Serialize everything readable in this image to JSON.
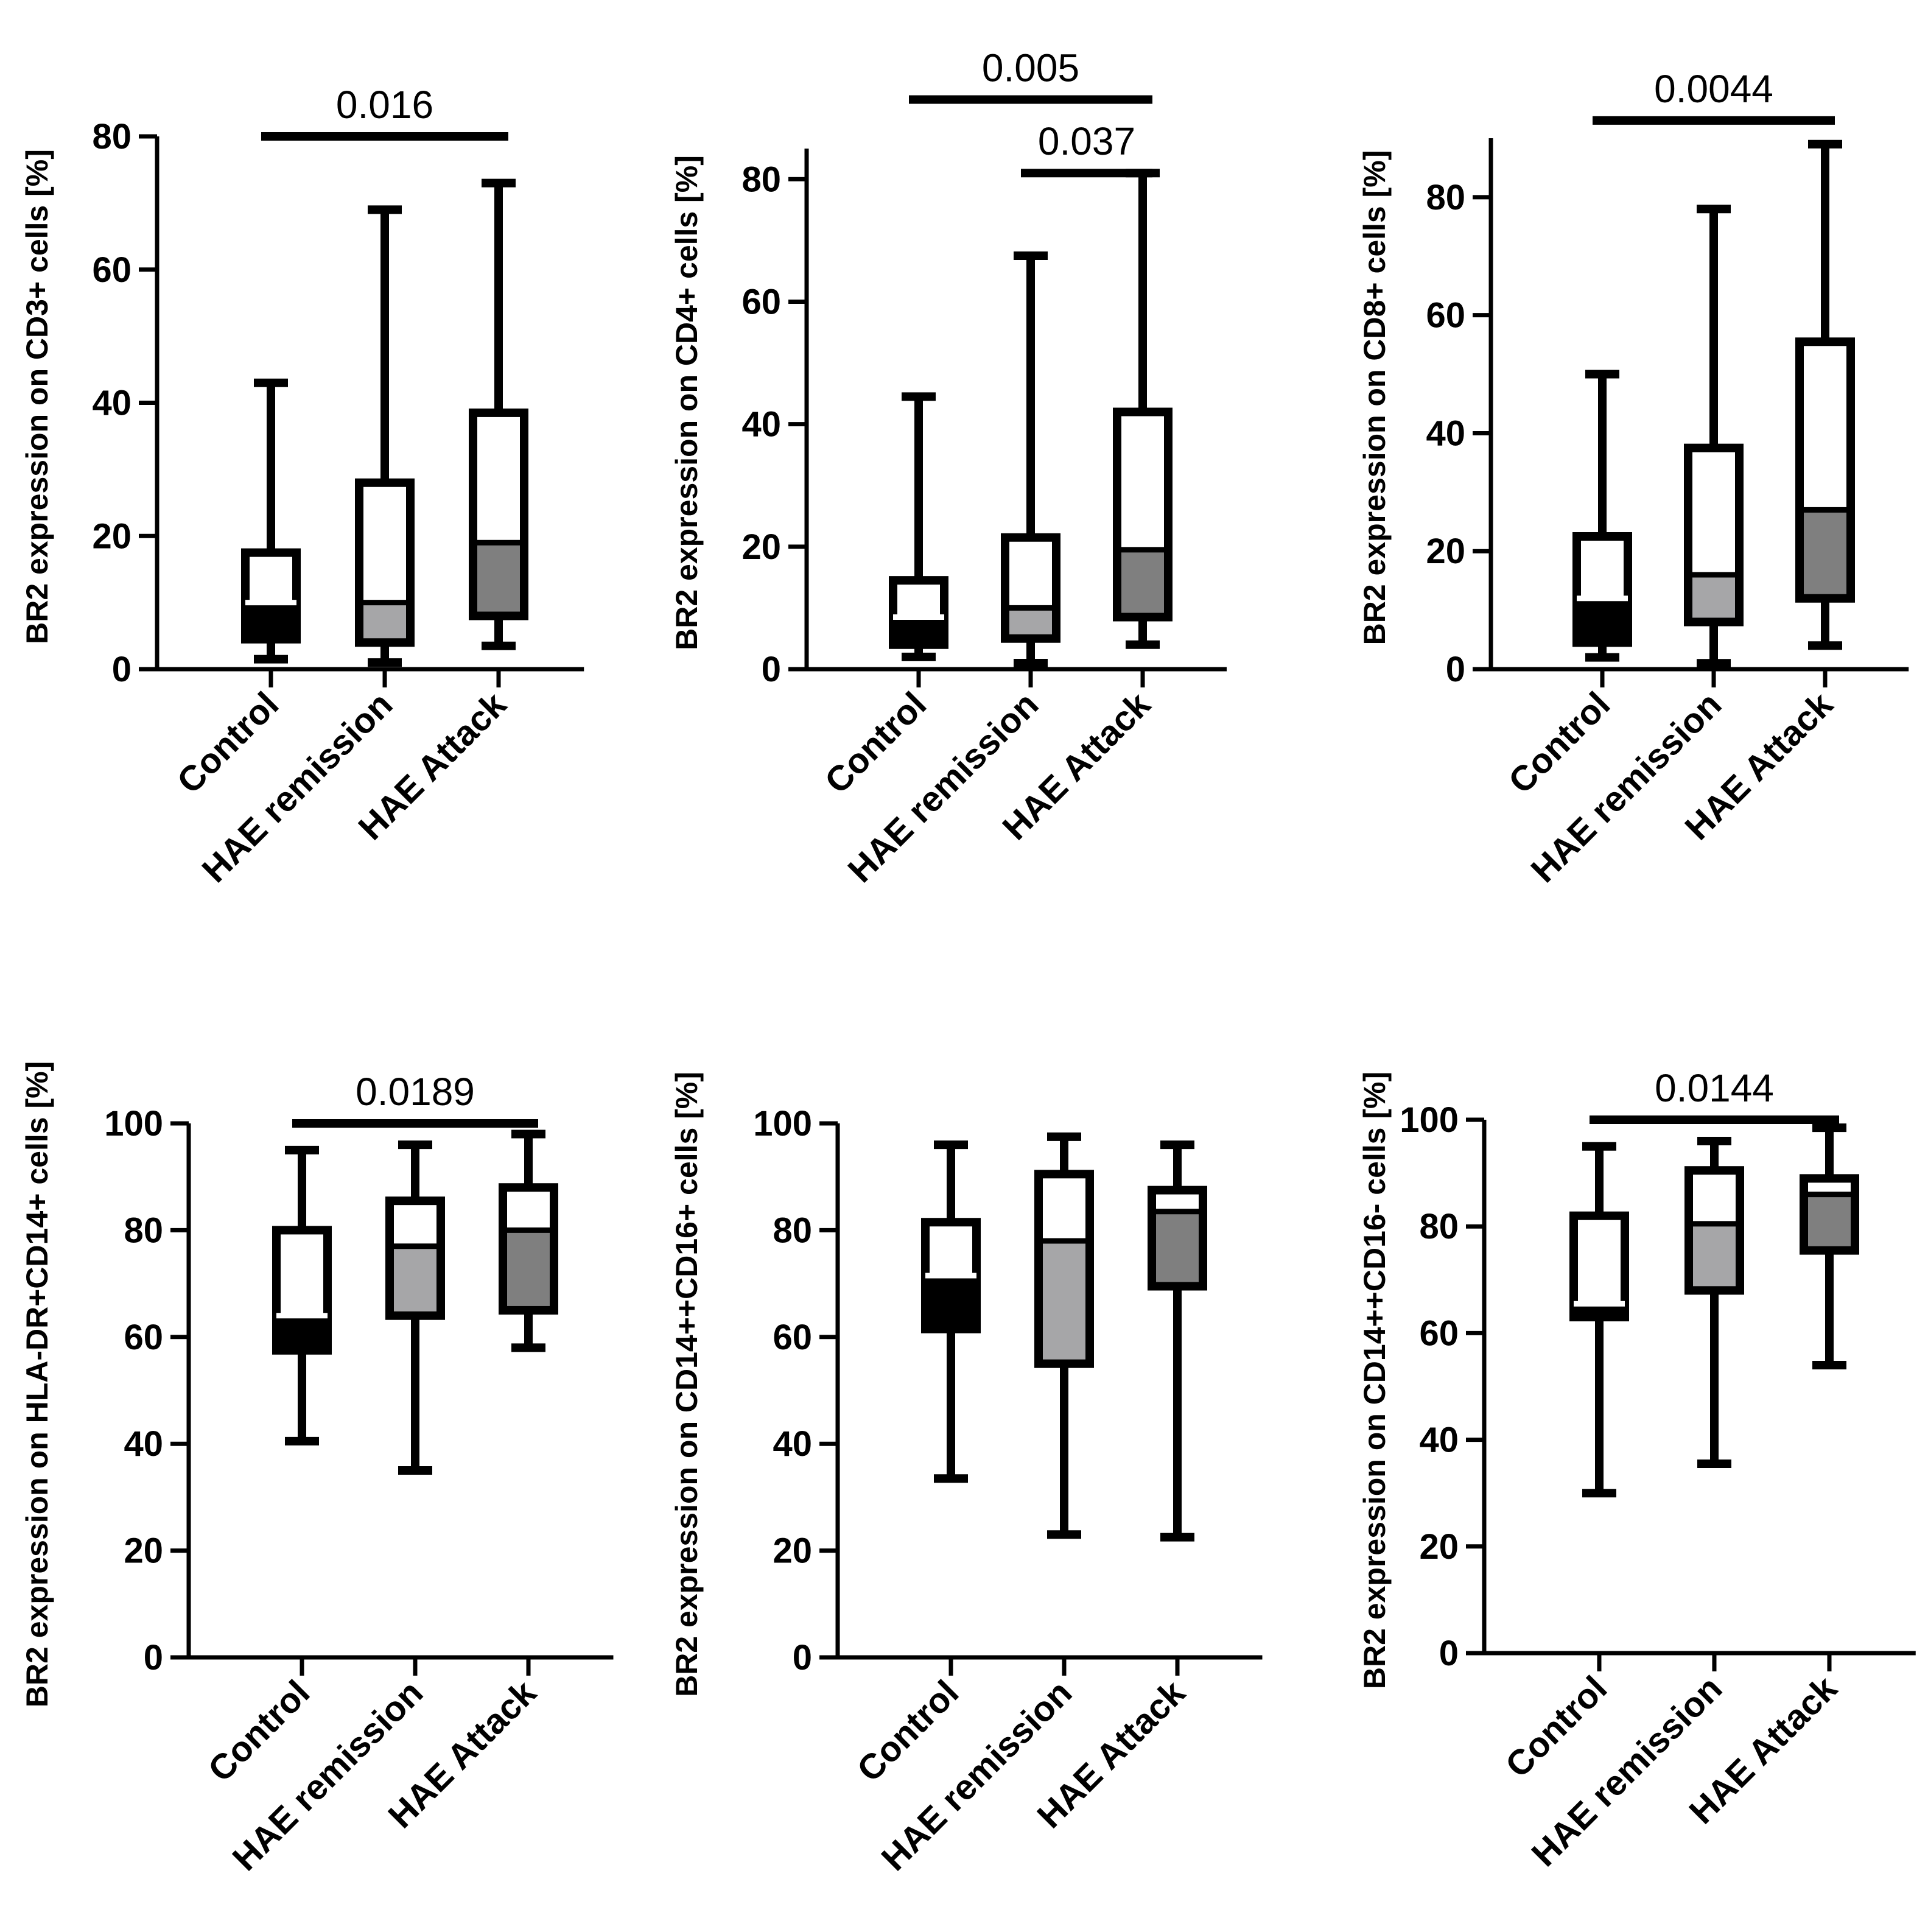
{
  "colors": {
    "ink": "#000000",
    "background": "#ffffff",
    "q1_fill_light": "#a6a6a8",
    "q1_fill_dark": "#7f7f7f"
  },
  "chart_data": [
    {
      "type": "box",
      "ylabel": "BR2 expression on CD3+ cells [%]",
      "categories": [
        "Control",
        "HAE remission",
        "HAE Attack"
      ],
      "ylim": [
        0,
        80
      ],
      "yticks": [
        0,
        20,
        40,
        60,
        80
      ],
      "boxes": [
        {
          "min": 1.5,
          "q1": 4.5,
          "median": 10,
          "q3": 17.5,
          "max": 43,
          "fill": "black"
        },
        {
          "min": 1,
          "q1": 4,
          "median": 10,
          "q3": 28,
          "max": 69,
          "fill": "light"
        },
        {
          "min": 3.5,
          "q1": 8,
          "median": 19,
          "q3": 38.5,
          "max": 73,
          "fill": "dark"
        }
      ],
      "comparisons": [
        {
          "from": 0,
          "to": 2,
          "label": "0.016",
          "y": 80
        }
      ]
    },
    {
      "type": "box",
      "ylabel": "BR2 expression on CD4+ cells [%]",
      "categories": [
        "Control",
        "HAE remission",
        "HAE Attack"
      ],
      "ylim": [
        0,
        85
      ],
      "yticks": [
        0,
        20,
        40,
        60,
        80
      ],
      "boxes": [
        {
          "min": 2,
          "q1": 4,
          "median": 8.5,
          "q3": 14.5,
          "max": 44.5,
          "fill": "black"
        },
        {
          "min": 1,
          "q1": 5,
          "median": 10,
          "q3": 21.5,
          "max": 67.5,
          "fill": "light"
        },
        {
          "min": 4,
          "q1": 8.5,
          "median": 19.5,
          "q3": 42,
          "max": 81,
          "fill": "dark"
        }
      ],
      "comparisons": [
        {
          "from": 0,
          "to": 2,
          "label": "0.005",
          "y": 93
        },
        {
          "from": 1,
          "to": 2,
          "label": "0.037",
          "y": 81
        }
      ]
    },
    {
      "type": "box",
      "ylabel": "BR2 expression on CD8+ cells [%]",
      "categories": [
        "Control",
        "HAE remission",
        "HAE Attack"
      ],
      "ylim": [
        0,
        90
      ],
      "yticks": [
        0,
        20,
        40,
        60,
        80
      ],
      "boxes": [
        {
          "min": 2,
          "q1": 4.5,
          "median": 12,
          "q3": 22.5,
          "max": 50,
          "fill": "black"
        },
        {
          "min": 1,
          "q1": 8,
          "median": 16,
          "q3": 37.5,
          "max": 78,
          "fill": "light"
        },
        {
          "min": 4,
          "q1": 12,
          "median": 27,
          "q3": 55.5,
          "max": 89,
          "fill": "dark"
        }
      ],
      "comparisons": [
        {
          "from": 0,
          "to": 2,
          "label": "0.0044",
          "y": 93
        }
      ]
    },
    {
      "type": "box",
      "ylabel": "BR2 expression on HLA-DR+CD14+ cells [%]",
      "categories": [
        "Control",
        "HAE remission",
        "HAE Attack"
      ],
      "ylim": [
        0,
        100
      ],
      "yticks": [
        0,
        20,
        40,
        60,
        80,
        100
      ],
      "boxes": [
        {
          "min": 40.5,
          "q1": 57.5,
          "median": 64,
          "q3": 80,
          "max": 95,
          "fill": "black"
        },
        {
          "min": 35,
          "q1": 64,
          "median": 77,
          "q3": 85.5,
          "max": 96,
          "fill": "light"
        },
        {
          "min": 58,
          "q1": 65,
          "median": 80,
          "q3": 88,
          "max": 98,
          "fill": "dark"
        }
      ],
      "comparisons": [
        {
          "from": 0,
          "to": 2,
          "label": "0.0189",
          "y": 100
        }
      ]
    },
    {
      "type": "box",
      "ylabel": "BR2 expression on CD14++CD16+ cells [%]",
      "categories": [
        "Control",
        "HAE remission",
        "HAE Attack"
      ],
      "ylim": [
        0,
        100
      ],
      "yticks": [
        0,
        20,
        40,
        60,
        80,
        100
      ],
      "boxes": [
        {
          "min": 33.5,
          "q1": 61.5,
          "median": 71.5,
          "q3": 81.5,
          "max": 96,
          "fill": "black"
        },
        {
          "min": 23,
          "q1": 55,
          "median": 78,
          "q3": 90.5,
          "max": 97.5,
          "fill": "light"
        },
        {
          "min": 22.5,
          "q1": 69.5,
          "median": 83.5,
          "q3": 87.5,
          "max": 96,
          "fill": "dark"
        }
      ],
      "comparisons": []
    },
    {
      "type": "box",
      "ylabel": "BR2 expression on CD14++CD16- cells [%]",
      "categories": [
        "Control",
        "HAE remission",
        "HAE Attack"
      ],
      "ylim": [
        0,
        100
      ],
      "yticks": [
        0,
        20,
        40,
        60,
        80,
        100
      ],
      "boxes": [
        {
          "min": 30,
          "q1": 63,
          "median": 65.5,
          "q3": 82,
          "max": 95,
          "fill": "black"
        },
        {
          "min": 35.5,
          "q1": 68,
          "median": 80.5,
          "q3": 90.5,
          "max": 96,
          "fill": "light"
        },
        {
          "min": 54,
          "q1": 75.5,
          "median": 86,
          "q3": 89,
          "max": 98.5,
          "fill": "dark"
        }
      ],
      "comparisons": [
        {
          "from": 0,
          "to": 2,
          "label": "0.0144",
          "y": 100
        }
      ]
    }
  ]
}
